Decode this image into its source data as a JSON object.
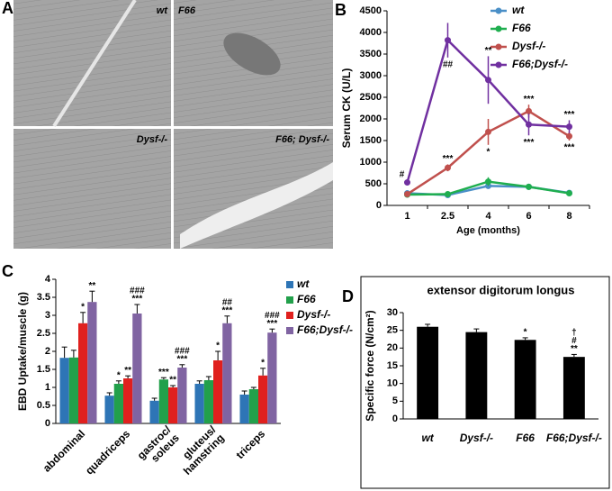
{
  "panel_labels": [
    "A",
    "B",
    "C",
    "D"
  ],
  "images": [
    {
      "label": "wt"
    },
    {
      "label": "F66"
    },
    {
      "label": "Dysf-/-"
    },
    {
      "label": "F66; Dysf-/-"
    }
  ],
  "chart_data": [
    {
      "type": "line",
      "xlabel": "Age (months)",
      "ylabel": "Serum CK (U/L)",
      "categories": [
        "1",
        "2.5",
        "4",
        "6",
        "8"
      ],
      "ylim": [
        0,
        4500
      ],
      "yticks": [
        0,
        500,
        1000,
        1500,
        2000,
        2500,
        3000,
        3500,
        4000,
        4500
      ],
      "series": [
        {
          "name": "wt",
          "color": "#4a8fc7",
          "values": [
            280,
            240,
            450,
            430,
            290
          ],
          "errors": [
            40,
            30,
            60,
            50,
            30
          ],
          "annotations": [
            null,
            null,
            null,
            null,
            null
          ]
        },
        {
          "name": "F66",
          "color": "#1fae4f",
          "values": [
            250,
            260,
            550,
            430,
            280
          ],
          "errors": [
            40,
            40,
            100,
            60,
            40
          ],
          "annotations": [
            null,
            null,
            null,
            null,
            null
          ]
        },
        {
          "name": "Dysf-/-",
          "color": "#c0504d",
          "values": [
            260,
            870,
            1700,
            2180,
            1600
          ],
          "errors": [
            40,
            80,
            300,
            150,
            100
          ],
          "annotations": [
            null,
            [
              "***"
            ],
            [
              "*"
            ],
            [
              "***"
            ],
            [
              "***"
            ]
          ]
        },
        {
          "name": "F66;Dysf-/-",
          "color": "#7030a0",
          "values": [
            530,
            3820,
            2900,
            1870,
            1820
          ],
          "errors": [
            60,
            400,
            550,
            250,
            150
          ],
          "annotations": [
            [
              "#"
            ],
            [
              "##"
            ],
            [
              "**"
            ],
            [
              "***"
            ],
            [
              "***"
            ]
          ]
        }
      ]
    },
    {
      "type": "bar",
      "ylabel": "EBD Uptake/muscle (g)",
      "categories": [
        "abdominal",
        "quadriceps",
        "gastroc/ soleus",
        "gluteus/ hamstring",
        "triceps"
      ],
      "ylim": [
        0,
        4
      ],
      "yticks": [
        0,
        0.5,
        1,
        1.5,
        2,
        2.5,
        3,
        3.5,
        4
      ],
      "series": [
        {
          "name": "wt",
          "color": "#2e75b6",
          "values": [
            1.82,
            0.77,
            0.63,
            1.1,
            0.8
          ],
          "errors": [
            0.3,
            0.08,
            0.07,
            0.08,
            0.1
          ],
          "annotations": [
            null,
            null,
            null,
            null,
            null
          ]
        },
        {
          "name": "F66",
          "color": "#22a04b",
          "values": [
            1.83,
            1.1,
            1.22,
            1.2,
            0.95
          ],
          "errors": [
            0.2,
            0.08,
            0.05,
            0.1,
            0.05
          ],
          "annotations": [
            null,
            [
              "*"
            ],
            [
              "***"
            ],
            null,
            null
          ]
        },
        {
          "name": "Dysf-/-",
          "color": "#e0201e",
          "values": [
            2.78,
            1.25,
            1.0,
            1.75,
            1.33
          ],
          "errors": [
            0.3,
            0.07,
            0.05,
            0.25,
            0.2
          ],
          "annotations": [
            [
              "*"
            ],
            [
              "**"
            ],
            [
              "**"
            ],
            [
              "*"
            ],
            [
              "*"
            ]
          ]
        },
        {
          "name": "F66;Dysf-/-",
          "color": "#8064a2",
          "values": [
            3.37,
            3.05,
            1.55,
            2.78,
            2.52
          ],
          "errors": [
            0.3,
            0.25,
            0.08,
            0.2,
            0.1
          ],
          "annotations": [
            [
              "**"
            ],
            [
              "###",
              "***"
            ],
            [
              "###",
              "***"
            ],
            [
              "##",
              "***"
            ],
            [
              "###",
              "***"
            ]
          ]
        }
      ]
    },
    {
      "type": "bar",
      "title": "extensor digitorum longus",
      "ylabel": "Specific force (N/cm²)",
      "categories": [
        "wt",
        "Dysf-/-",
        "F66",
        "F66;Dysf-/-"
      ],
      "ylim": [
        0,
        30
      ],
      "yticks": [
        0,
        5,
        10,
        15,
        20,
        25,
        30
      ],
      "series": [
        {
          "color": "#000000",
          "values": [
            26,
            24.5,
            22.3,
            17.5
          ],
          "errors": [
            0.7,
            0.9,
            0.6,
            0.7
          ],
          "annotations": [
            null,
            null,
            [
              "*"
            ],
            [
              "†",
              "#",
              "**"
            ]
          ]
        }
      ]
    }
  ]
}
